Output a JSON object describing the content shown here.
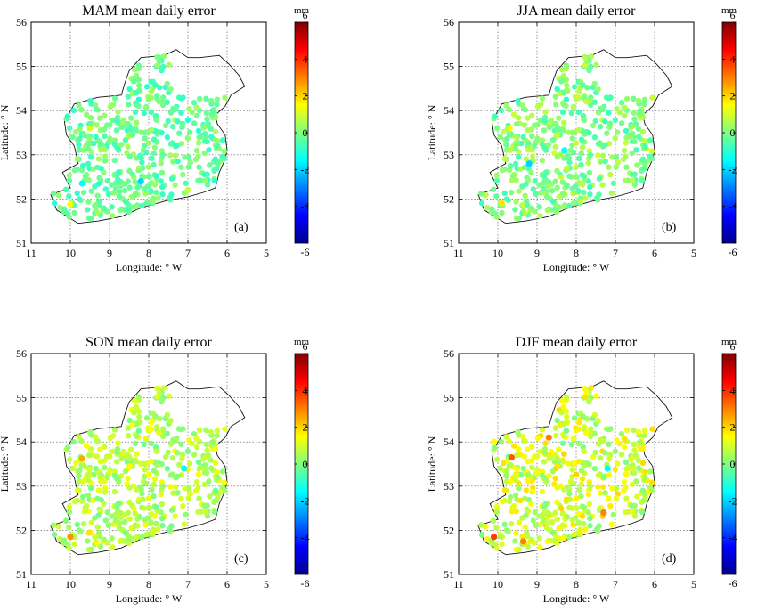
{
  "colorbar": {
    "unit": "mm",
    "ticks": [
      "6",
      "4",
      "2",
      "0",
      "-2",
      "-4",
      "-6"
    ],
    "range": [
      -6,
      6
    ],
    "colormap": "jet"
  },
  "chart_data": [
    {
      "type": "scatter",
      "title": "MAM mean daily error",
      "panel_label": "(a)",
      "xlabel": "Longitude: ° W",
      "ylabel": "Latitude: ° N",
      "xlim": [
        11,
        5
      ],
      "ylim": [
        51,
        56
      ],
      "x_ticks": [
        "11",
        "10",
        "9",
        "8",
        "7",
        "6",
        "5"
      ],
      "y_ticks": [
        "51",
        "52",
        "53",
        "54",
        "55",
        "56"
      ],
      "grid": true,
      "colorbar_placement": "right",
      "value_range_description": "mostly -1 to 0.5 mm",
      "highlights": [
        {
          "lon": 10.0,
          "lat": 51.88,
          "value": 1.5
        },
        {
          "lon": 9.5,
          "lat": 53.6,
          "value": 1.0
        },
        {
          "lon": 8.2,
          "lat": 52.4,
          "value": -2.0
        },
        {
          "lon": 9.7,
          "lat": 52.35,
          "value": -1.5
        },
        {
          "lon": 7.0,
          "lat": 52.2,
          "value": 0.8
        }
      ]
    },
    {
      "type": "scatter",
      "title": "JJA mean daily error",
      "panel_label": "(b)",
      "xlabel": "Longitude: ° W",
      "ylabel": "Latitude: ° N",
      "xlim": [
        11,
        5
      ],
      "ylim": [
        51,
        56
      ],
      "x_ticks": [
        "11",
        "10",
        "9",
        "8",
        "7",
        "6",
        "5"
      ],
      "y_ticks": [
        "51",
        "52",
        "53",
        "54",
        "55",
        "56"
      ],
      "grid": true,
      "colorbar_placement": "right",
      "value_range_description": "mostly -1 to 1 mm",
      "highlights": [
        {
          "lon": 9.9,
          "lat": 51.9,
          "value": 1.8
        },
        {
          "lon": 9.7,
          "lat": 53.6,
          "value": 1.5
        },
        {
          "lon": 9.2,
          "lat": 52.8,
          "value": -2.0
        },
        {
          "lon": 8.3,
          "lat": 53.1,
          "value": -1.5
        }
      ]
    },
    {
      "type": "scatter",
      "title": "SON mean daily error",
      "panel_label": "(c)",
      "xlabel": "Longitude: ° W",
      "ylabel": "Latitude: ° N",
      "xlim": [
        11,
        5
      ],
      "ylim": [
        51,
        56
      ],
      "x_ticks": [
        "11",
        "10",
        "9",
        "8",
        "7",
        "6",
        "5"
      ],
      "y_ticks": [
        "51",
        "52",
        "53",
        "54",
        "55",
        "56"
      ],
      "grid": true,
      "colorbar_placement": "right",
      "value_range_description": "mostly 0 to 1.5 mm",
      "highlights": [
        {
          "lon": 10.0,
          "lat": 51.85,
          "value": 2.8
        },
        {
          "lon": 9.7,
          "lat": 53.62,
          "value": 2.5
        },
        {
          "lon": 9.5,
          "lat": 51.95,
          "value": 1.8
        },
        {
          "lon": 7.1,
          "lat": 53.4,
          "value": -1.5
        }
      ]
    },
    {
      "type": "scatter",
      "title": "DJF mean daily error",
      "panel_label": "(d)",
      "xlabel": "Longitude: ° W",
      "ylabel": "Latitude: ° N",
      "xlim": [
        11,
        5
      ],
      "ylim": [
        51,
        56
      ],
      "x_ticks": [
        "11",
        "10",
        "9",
        "8",
        "7",
        "6",
        "5"
      ],
      "y_ticks": [
        "51",
        "52",
        "53",
        "54",
        "55",
        "56"
      ],
      "grid": true,
      "colorbar_placement": "right",
      "value_range_description": "mostly 0 to 2 mm",
      "highlights": [
        {
          "lon": 10.1,
          "lat": 51.85,
          "value": 3.8
        },
        {
          "lon": 9.65,
          "lat": 53.65,
          "value": 3.5
        },
        {
          "lon": 8.7,
          "lat": 54.1,
          "value": 3.0
        },
        {
          "lon": 9.35,
          "lat": 51.75,
          "value": 3.0
        },
        {
          "lon": 7.3,
          "lat": 52.4,
          "value": 3.0
        },
        {
          "lon": 7.2,
          "lat": 53.4,
          "value": -1.5
        },
        {
          "lon": 10.1,
          "lat": 54.0,
          "value": 1.5
        }
      ]
    }
  ]
}
